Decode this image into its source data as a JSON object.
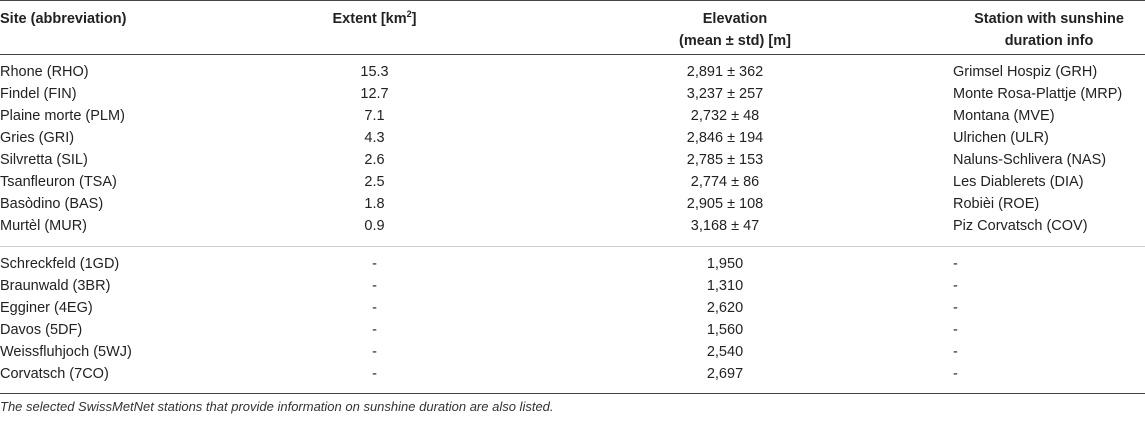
{
  "table": {
    "headers": {
      "site": "Site (abbreviation)",
      "extent_prefix": "Extent [km",
      "extent_sup": "2",
      "extent_suffix": "]",
      "elevation_line1": "Elevation",
      "elevation_line2": "(mean ± std) [m]",
      "station_line1": "Station with sunshine",
      "station_line2": "duration info"
    },
    "group1": [
      {
        "site": "Rhone (RHO)",
        "extent": "15.3",
        "elevation": "2,891 ± 362",
        "station": "Grimsel Hospiz (GRH)"
      },
      {
        "site": "Findel (FIN)",
        "extent": "12.7",
        "elevation": "3,237 ± 257",
        "station": "Monte Rosa-Plattje (MRP)"
      },
      {
        "site": "Plaine morte (PLM)",
        "extent": "7.1",
        "elevation": "2,732 ± 48",
        "station": "Montana (MVE)"
      },
      {
        "site": "Gries (GRI)",
        "extent": "4.3",
        "elevation": "2,846 ± 194",
        "station": "Ulrichen (ULR)"
      },
      {
        "site": "Silvretta (SIL)",
        "extent": "2.6",
        "elevation": "2,785 ± 153",
        "station": "Naluns-Schlivera (NAS)"
      },
      {
        "site": "Tsanfleuron (TSA)",
        "extent": "2.5",
        "elevation": "2,774 ± 86",
        "station": "Les Diablerets (DIA)"
      },
      {
        "site": "Basòdino (BAS)",
        "extent": "1.8",
        "elevation": "2,905 ± 108",
        "station": "Robièi (ROE)"
      },
      {
        "site": "Murtèl (MUR)",
        "extent": "0.9",
        "elevation": "3,168 ± 47",
        "station": "Piz Corvatsch (COV)"
      }
    ],
    "group2": [
      {
        "site": "Schreckfeld (1GD)",
        "extent": "-",
        "elevation": "1,950",
        "station": "-"
      },
      {
        "site": "Braunwald (3BR)",
        "extent": "-",
        "elevation": "1,310",
        "station": "-"
      },
      {
        "site": "Egginer (4EG)",
        "extent": "-",
        "elevation": "2,620",
        "station": "-"
      },
      {
        "site": "Davos (5DF)",
        "extent": "-",
        "elevation": "1,560",
        "station": "-"
      },
      {
        "site": "Weissfluhjoch (5WJ)",
        "extent": "-",
        "elevation": "2,540",
        "station": "-"
      },
      {
        "site": "Corvatsch (7CO)",
        "extent": "-",
        "elevation": "2,697",
        "station": "-"
      }
    ],
    "footnote": "The selected SwissMetNet stations that provide information on sunshine duration are also listed."
  }
}
